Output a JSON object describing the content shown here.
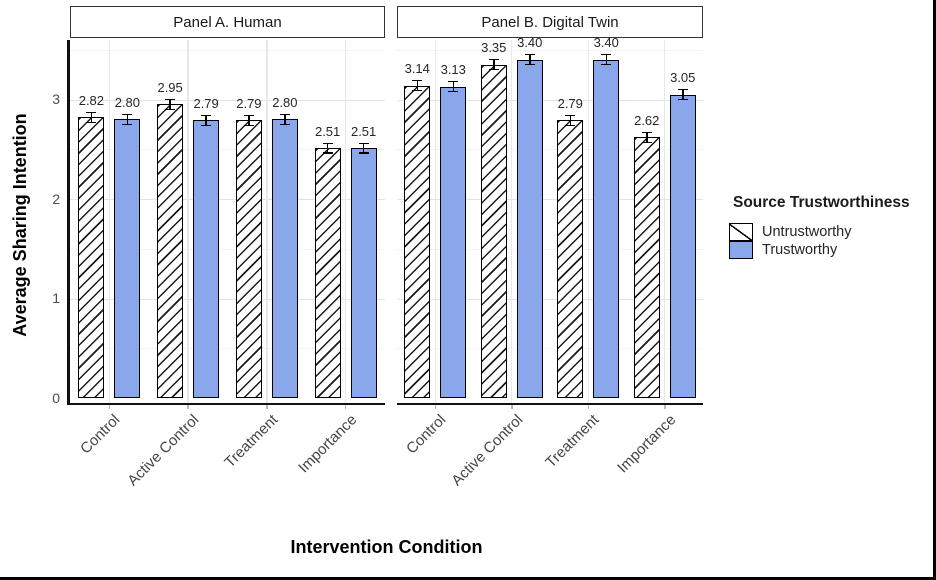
{
  "figure": {
    "y_axis_title": "Average Sharing Intention",
    "x_axis_title": "Intervention Condition",
    "y_ticks": [
      0,
      1,
      2,
      3
    ]
  },
  "legend": {
    "title": "Source Trustworthiness",
    "items": [
      {
        "label": "Untrustworthy",
        "swatch": "hatched-white"
      },
      {
        "label": "Trustworthy",
        "swatch": "solid-blue"
      }
    ]
  },
  "colors": {
    "trustworthy_blue": "#8AA7EB",
    "untrustworthy_fill": "#ffffff",
    "bar_border": "#000000",
    "hatch_line": "#1a1a1a",
    "grid_major": "#e4e4e4",
    "grid_minor": "#f3f3f3",
    "axis_line": "#111111",
    "tick_label": "#4d4d4d"
  },
  "chart_data": {
    "type": "bar",
    "title": "",
    "xlabel": "Intervention Condition",
    "ylabel": "Average Sharing Intention",
    "categories": [
      "Control",
      "Active Control",
      "Treatment",
      "Importance"
    ],
    "facets": [
      {
        "label": "Panel A. Human",
        "series": [
          {
            "name": "Untrustworthy",
            "values": [
              2.82,
              2.95,
              2.79,
              2.51
            ]
          },
          {
            "name": "Trustworthy",
            "values": [
              2.8,
              2.79,
              2.8,
              2.51
            ]
          }
        ]
      },
      {
        "label": "Panel B. Digital Twin",
        "series": [
          {
            "name": "Untrustworthy",
            "values": [
              3.14,
              3.35,
              2.79,
              2.62
            ]
          },
          {
            "name": "Trustworthy",
            "values": [
              3.13,
              3.4,
              3.4,
              3.05
            ]
          }
        ]
      }
    ],
    "error_bar_se_estimate": 0.05,
    "bar_labels_shown": true,
    "ylim": [
      0,
      3.6
    ],
    "y_ticks": [
      0,
      1,
      2,
      3
    ],
    "grid": "major+minor horizontal, vertical at group centers",
    "legend_position": "right"
  }
}
